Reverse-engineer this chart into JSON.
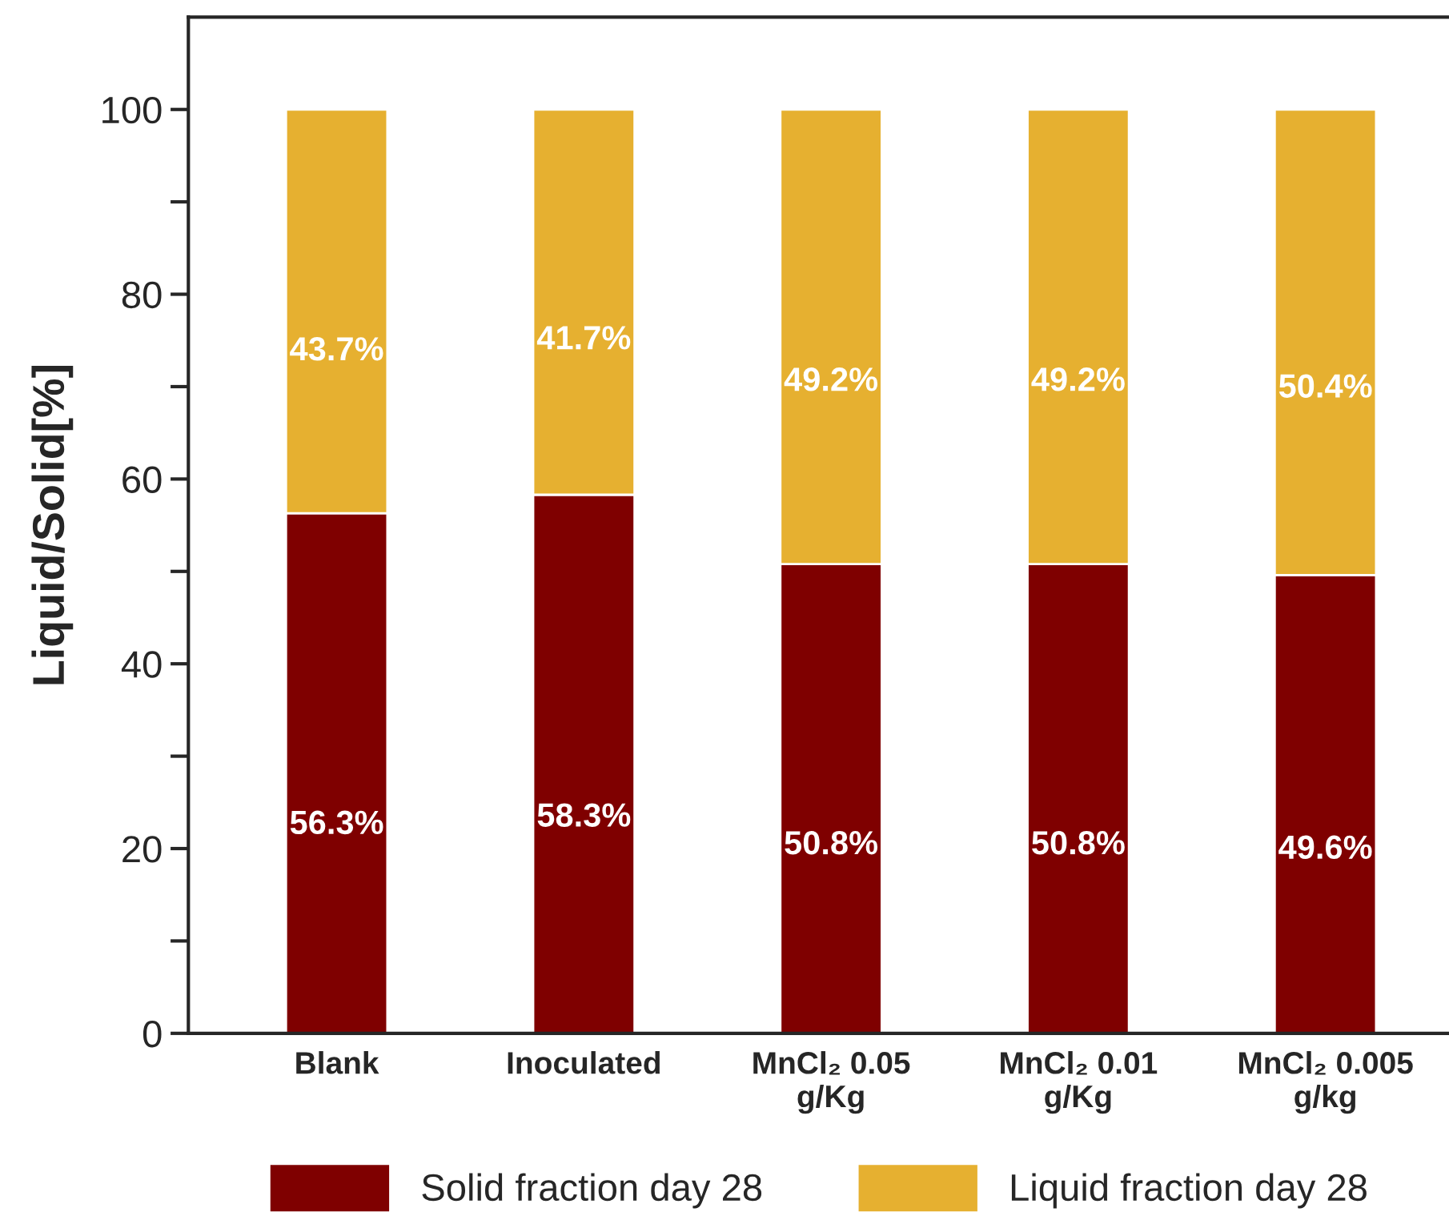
{
  "chart_data": {
    "type": "bar",
    "stacked": true,
    "ylabel": "Liquid/Solid[%]",
    "categories": [
      "Blank",
      "Inoculated",
      "MnCl₂ 0.05\ng/Kg",
      "MnCl₂ 0.01\ng/Kg",
      "MnCl₂ 0.005\ng/kg"
    ],
    "series": [
      {
        "name": "Solid fraction day 28",
        "color": "#7f0000",
        "values": [
          56.3,
          58.3,
          50.8,
          50.8,
          49.6
        ],
        "value_labels": [
          "56.3%",
          "58.3%",
          "50.8%",
          "50.8%",
          "49.6%"
        ]
      },
      {
        "name": "Liquid fraction day 28",
        "color": "#e6b030",
        "values": [
          43.7,
          41.7,
          49.2,
          49.2,
          50.4
        ],
        "value_labels": [
          "43.7%",
          "41.7%",
          "49.2%",
          "49.2%",
          "50.4%"
        ]
      }
    ],
    "ylim": [
      0,
      110
    ],
    "yticks": [
      0,
      {
        "value": 10,
        "label": null
      },
      20,
      {
        "value": 30,
        "label": null
      },
      40,
      {
        "value": 50,
        "label": null
      },
      60,
      {
        "value": 70,
        "label": null
      },
      80,
      {
        "value": 90,
        "label": null
      },
      100
    ],
    "grid": false,
    "legend": "bottom"
  }
}
